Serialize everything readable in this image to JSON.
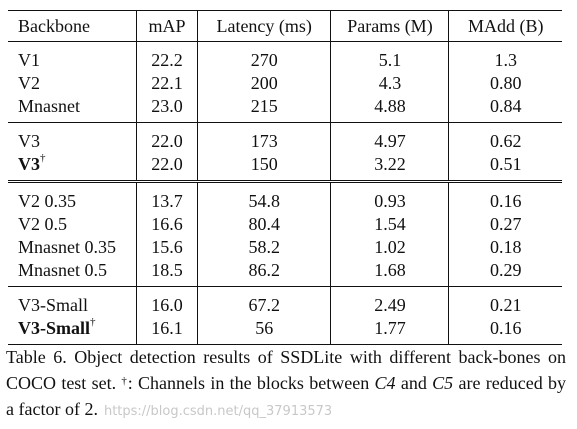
{
  "table": {
    "headers": [
      "Backbone",
      "mAP",
      "Latency (ms)",
      "Params (M)",
      "MAdd (B)"
    ],
    "groups": [
      [
        {
          "backbone": "V1",
          "dagger": false,
          "bold": false,
          "map": "22.2",
          "latency": "270",
          "params": "5.1",
          "madd": "1.3"
        },
        {
          "backbone": "V2",
          "dagger": false,
          "bold": false,
          "map": "22.1",
          "latency": "200",
          "params": "4.3",
          "madd": "0.80"
        },
        {
          "backbone": "Mnasnet",
          "dagger": false,
          "bold": false,
          "map": "23.0",
          "latency": "215",
          "params": "4.88",
          "madd": "0.84"
        }
      ],
      [
        {
          "backbone": "V3",
          "dagger": false,
          "bold": false,
          "map": "22.0",
          "latency": "173",
          "params": "4.97",
          "madd": "0.62"
        },
        {
          "backbone": "V3",
          "dagger": true,
          "bold": true,
          "map": "22.0",
          "latency": "150",
          "params": "3.22",
          "madd": "0.51"
        }
      ],
      [
        {
          "backbone": "V2 0.35",
          "dagger": false,
          "bold": false,
          "map": "13.7",
          "latency": "54.8",
          "params": "0.93",
          "madd": "0.16"
        },
        {
          "backbone": "V2 0.5",
          "dagger": false,
          "bold": false,
          "map": "16.6",
          "latency": "80.4",
          "params": "1.54",
          "madd": "0.27"
        },
        {
          "backbone": "Mnasnet 0.35",
          "dagger": false,
          "bold": false,
          "map": "15.6",
          "latency": "58.2",
          "params": "1.02",
          "madd": "0.18"
        },
        {
          "backbone": "Mnasnet 0.5",
          "dagger": false,
          "bold": false,
          "map": "18.5",
          "latency": "86.2",
          "params": "1.68",
          "madd": "0.29"
        }
      ],
      [
        {
          "backbone": "V3-Small",
          "dagger": false,
          "bold": false,
          "map": "16.0",
          "latency": "67.2",
          "params": "2.49",
          "madd": "0.21"
        },
        {
          "backbone": "V3-Small",
          "dagger": true,
          "bold": true,
          "map": "16.1",
          "latency": "56",
          "params": "1.77",
          "madd": "0.16"
        }
      ]
    ],
    "separators": [
      "single",
      "double",
      "single"
    ],
    "dagger_symbol": "†"
  },
  "caption": {
    "part1": "Table 6. Object detection results of SSDLite with different back-bones on COCO test set. ",
    "dagger": "†",
    "part2": ": Channels in the blocks between ",
    "c4": "C4",
    "part3": " and ",
    "c5": "C5",
    "part4": " are reduced by a factor of 2."
  },
  "watermark": "https://blog.csdn.net/qq_37913573"
}
